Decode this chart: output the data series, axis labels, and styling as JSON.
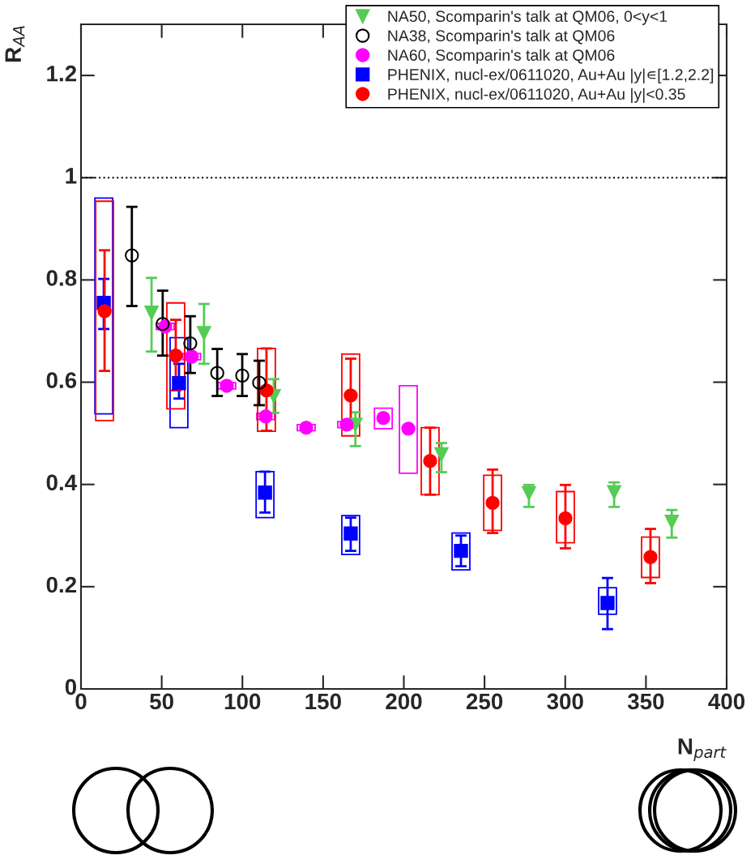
{
  "chart_data": {
    "type": "scatter",
    "xlabel": "N$_{part}$",
    "ylabel": "R$_{AA}$",
    "xlim": [
      0,
      400
    ],
    "xticks": [
      0,
      50,
      100,
      150,
      200,
      250,
      300,
      350,
      400
    ],
    "ylim": [
      0,
      1.3
    ],
    "yticks": [
      0,
      0.2,
      0.4,
      0.6,
      0.8,
      1,
      1.2
    ],
    "legend": "top right",
    "grid": false,
    "ref_lines": [
      {
        "axis": "y",
        "value": 1,
        "line_style": "dotted",
        "color": "#000000"
      }
    ],
    "series": [
      {
        "name": "NA50, Scomparin's talk at QM06, 0<y<1",
        "marker": "triangle",
        "color": "#55cc55",
        "x": [
          43.7,
          76.2,
          119.4,
          170,
          223.3,
          277.5,
          330.3,
          366
        ],
        "values": [
          0.736,
          0.696,
          0.573,
          0.517,
          0.459,
          0.383,
          0.385,
          0.327
        ],
        "errors": [
          [
            0.66,
            0.804
          ],
          [
            0.636,
            0.753
          ],
          [
            0.54,
            0.606
          ],
          [
            0.475,
            0.541
          ],
          [
            0.424,
            0.481
          ],
          [
            0.356,
            0.399
          ],
          [
            0.356,
            0.404
          ],
          [
            0.296,
            0.35
          ]
        ]
      },
      {
        "name": "NA38, Scomparin's talk at QM06",
        "marker": "open circle",
        "color": "#000000",
        "x": [
          31.5,
          50.6,
          67.7,
          84.4,
          99.9,
          110.4
        ],
        "values": [
          0.848,
          0.714,
          0.676,
          0.618,
          0.613,
          0.599
        ],
        "errors": [
          [
            0.749,
            0.943
          ],
          [
            0.652,
            0.779
          ],
          [
            0.618,
            0.729
          ],
          [
            0.573,
            0.665
          ],
          [
            0.573,
            0.655
          ],
          [
            0.555,
            0.642
          ]
        ]
      },
      {
        "type": "bar",
        "color": "#ff00ff",
        "x": [
          52.2,
          68.6,
          90.3,
          114.4,
          139.5,
          164.6,
          187.3,
          202.8
        ],
        "base": [
          0.703,
          0.644,
          0.587,
          0.527,
          0.505,
          0.511,
          0.509,
          0.422
        ],
        "values": [
          0.012,
          0.012,
          0.012,
          0.012,
          0.012,
          0.012,
          0.04,
          0.171
        ]
      },
      {
        "name": "NA60, Scomparin's talk at QM06",
        "marker": "circle",
        "color": "#ff00ff",
        "x": [
          52.2,
          68.6,
          90.3,
          114.4,
          139.5,
          164.6,
          187.3,
          202.8
        ],
        "values": [
          0.709,
          0.65,
          0.593,
          0.533,
          0.511,
          0.517,
          0.53,
          0.509
        ]
      },
      {
        "type": "bar",
        "color": "#0000ff",
        "x": [
          14.1,
          60.7,
          114,
          167.1,
          235.4,
          326.2
        ],
        "base": [
          0.538,
          0.511,
          0.335,
          0.263,
          0.233,
          0.146
        ],
        "values": [
          0.422,
          0.176,
          0.09,
          0.076,
          0.072,
          0.052
        ]
      },
      {
        "name": "PHENIX, nucl-ex/0611020, Au+Au |y|∊[1.2,2.2]",
        "marker": "square",
        "color": "#0000ff",
        "x": [
          14.1,
          60.7,
          114,
          167.1,
          235.4,
          326.2
        ],
        "values": [
          0.755,
          0.598,
          0.384,
          0.304,
          0.27,
          0.168
        ],
        "errors": [
          [
            0.704,
            0.802
          ],
          [
            0.568,
            0.636
          ],
          [
            0.345,
            0.425
          ],
          [
            0.27,
            0.335
          ],
          [
            0.24,
            0.3
          ],
          [
            0.117,
            0.217
          ]
        ]
      },
      {
        "type": "bar",
        "color": "#ff0000",
        "x": [
          14.6,
          58.7,
          114.9,
          167.1,
          216.3,
          255,
          300.1,
          352.8
        ],
        "base": [
          0.525,
          0.548,
          0.504,
          0.495,
          0.38,
          0.31,
          0.286,
          0.218
        ],
        "values": [
          0.429,
          0.207,
          0.162,
          0.16,
          0.131,
          0.108,
          0.1,
          0.079
        ]
      },
      {
        "name": "PHENIX, nucl-ex/0611020, Au+Au |y|<0.35",
        "marker": "circle",
        "color": "#ff0000",
        "x": [
          14.6,
          58.7,
          114.9,
          167.1,
          216.3,
          255,
          300.1,
          352.8
        ],
        "values": [
          0.739,
          0.652,
          0.584,
          0.574,
          0.446,
          0.364,
          0.334,
          0.258
        ],
        "errors": [
          [
            0.622,
            0.858
          ],
          [
            0.584,
            0.722
          ],
          [
            0.505,
            0.666
          ],
          [
            0.511,
            0.646
          ],
          [
            0.38,
            0.511
          ],
          [
            0.305,
            0.429
          ],
          [
            0.275,
            0.399
          ],
          [
            0.207,
            0.313
          ]
        ]
      }
    ]
  }
}
